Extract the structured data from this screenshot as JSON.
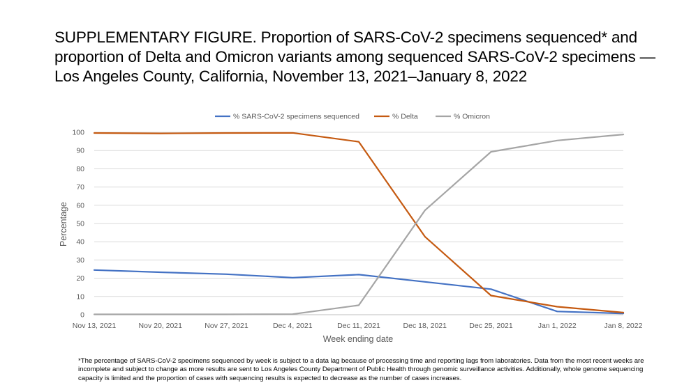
{
  "title": "SUPPLEMENTARY FIGURE. Proportion of SARS-CoV-2 specimens sequenced* and proportion of Delta and Omicron variants among sequenced SARS-CoV-2 specimens — Los Angeles County, California, November 13, 2021–January 8, 2022",
  "footnote": "*The percentage of SARS-CoV-2 specimens sequenced by week is subject to a data lag because of processing time and reporting lags from laboratories. Data from the most recent weeks are incomplete and subject to change as more results are sent to Los Angeles County Department of Public Health through genomic surveillance activities. Additionally, whole genome sequencing capacity is limited and the proportion of cases with sequencing results is expected to decrease as the number of cases increases.",
  "chart_data": {
    "type": "line",
    "categories": [
      "Nov 13, 2021",
      "Nov 20, 2021",
      "Nov 27, 2021",
      "Dec 4, 2021",
      "Dec 11, 2021",
      "Dec 18, 2021",
      "Dec 25, 2021",
      "Jan 1, 2022",
      "Jan 8, 2022"
    ],
    "series": [
      {
        "name": "% SARS-CoV-2 specimens sequenced",
        "color": "#4472C4",
        "values": [
          24.5,
          23.3,
          22.2,
          20.3,
          22.0,
          18.0,
          14.0,
          1.8,
          0.7
        ]
      },
      {
        "name": "% Delta",
        "color": "#C55A11",
        "values": [
          99.6,
          99.4,
          99.6,
          99.7,
          94.8,
          42.8,
          10.5,
          4.4,
          1.2
        ]
      },
      {
        "name": "% Omicron",
        "color": "#A5A5A5",
        "values": [
          0.2,
          0.2,
          0.2,
          0.3,
          5.2,
          57.2,
          89.3,
          95.5,
          98.8
        ]
      }
    ],
    "xlabel": "Week ending date",
    "ylabel": "Percentage",
    "ylim": [
      0,
      100
    ],
    "yticks": [
      "0",
      "10",
      "20",
      "30",
      "40",
      "50",
      "60",
      "70",
      "80",
      "90",
      "100"
    ],
    "grid": true,
    "legend_position": "top"
  }
}
